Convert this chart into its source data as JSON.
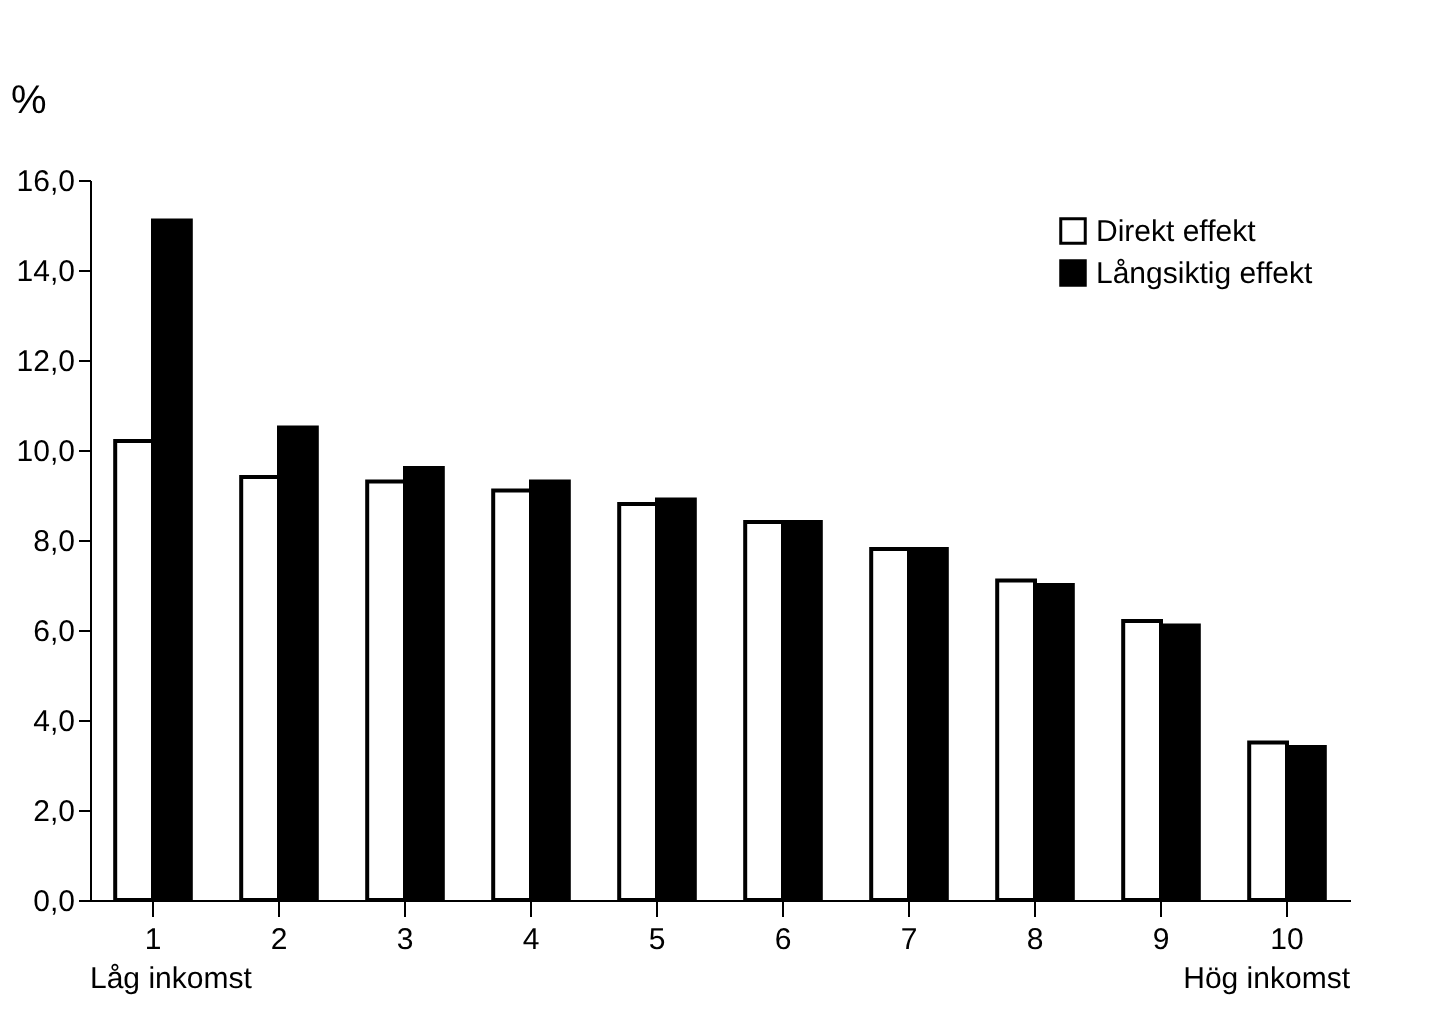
{
  "chart_data": {
    "type": "bar",
    "ylabel": "%",
    "categories": [
      "1",
      "2",
      "3",
      "4",
      "5",
      "6",
      "7",
      "8",
      "9",
      "10"
    ],
    "series": [
      {
        "name": "Direkt effekt",
        "color": "#ffffff",
        "values": [
          10.2,
          9.4,
          9.3,
          9.1,
          8.8,
          8.4,
          7.8,
          7.1,
          6.2,
          3.5
        ]
      },
      {
        "name": "Långsiktig effekt",
        "color": "#000000",
        "values": [
          15.1,
          10.5,
          9.6,
          9.3,
          8.9,
          8.4,
          7.8,
          7.0,
          6.1,
          3.4
        ]
      }
    ],
    "ylim": [
      0,
      16
    ],
    "yticks": [
      {
        "value": 0,
        "label": "0,0"
      },
      {
        "value": 2,
        "label": "2,0"
      },
      {
        "value": 4,
        "label": "4,0"
      },
      {
        "value": 6,
        "label": "6,0"
      },
      {
        "value": 8,
        "label": "8,0"
      },
      {
        "value": 10,
        "label": "10,0"
      },
      {
        "value": 12,
        "label": "12,0"
      },
      {
        "value": 14,
        "label": "14,0"
      },
      {
        "value": 16,
        "label": "16,0"
      }
    ],
    "annotations": [
      "Låg inkomst",
      "Hög inkomst"
    ],
    "grid": false,
    "legend": "top right"
  }
}
